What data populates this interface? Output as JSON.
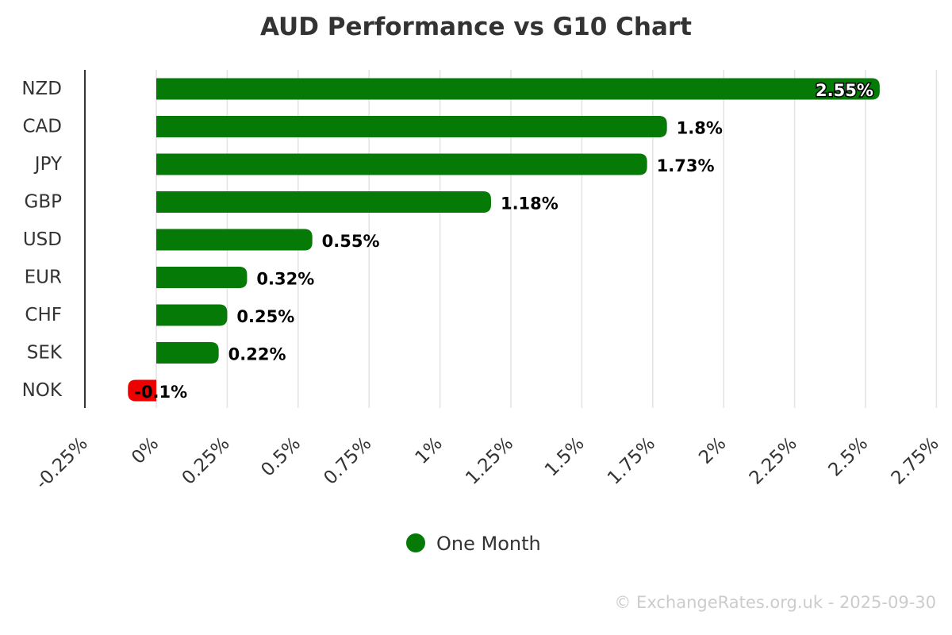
{
  "chart_data": {
    "type": "bar",
    "orientation": "horizontal",
    "title": "AUD Performance vs G10 Chart",
    "categories": [
      "NZD",
      "CAD",
      "JPY",
      "GBP",
      "USD",
      "EUR",
      "CHF",
      "SEK",
      "NOK"
    ],
    "series": [
      {
        "name": "One Month",
        "values": [
          2.55,
          1.8,
          1.73,
          1.18,
          0.55,
          0.32,
          0.25,
          0.22,
          -0.1
        ],
        "data_labels": [
          "2.55%",
          "1.8%",
          "1.73%",
          "1.18%",
          "0.55%",
          "0.32%",
          "0.25%",
          "0.22%",
          "-0.1%"
        ]
      }
    ],
    "xlim": [
      -0.25,
      2.75
    ],
    "tick_values": [
      -0.25,
      0,
      0.25,
      0.5,
      0.75,
      1,
      1.25,
      1.5,
      1.75,
      2,
      2.25,
      2.5,
      2.75
    ],
    "tick_labels": [
      "-0.25%",
      "0%",
      "0.25%",
      "0.5%",
      "0.75%",
      "1%",
      "1.25%",
      "1.5%",
      "1.75%",
      "2%",
      "2.25%",
      "2.5%",
      "2.75%"
    ],
    "grid": true,
    "legend_position": "bottom-center",
    "positive_color": "#067a06",
    "negative_color": "#ee0000"
  },
  "credit": "© ExchangeRates.org.uk - 2025-09-30"
}
